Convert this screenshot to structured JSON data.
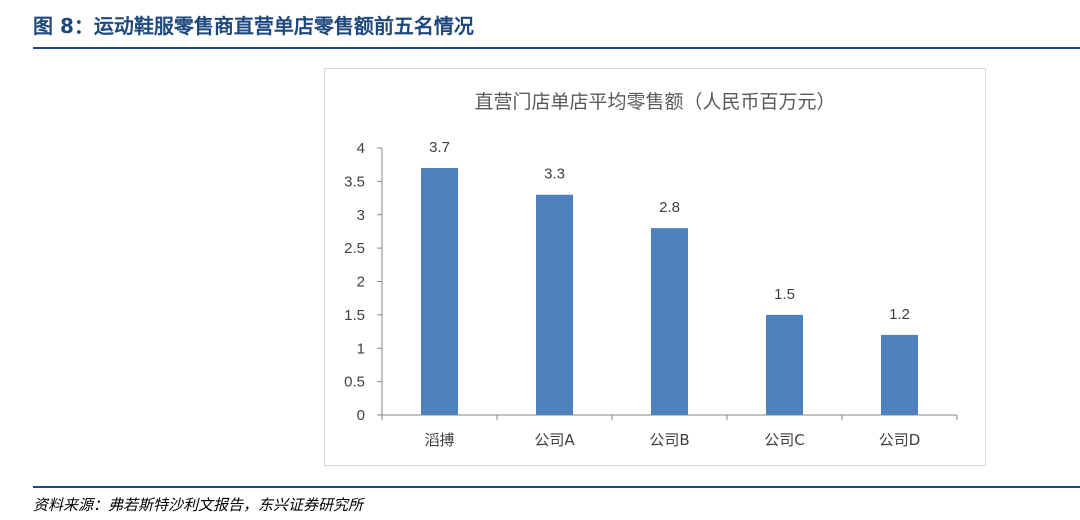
{
  "figure_title": "图 8：运动鞋服零售商直营单店零售额前五名情况",
  "source_note": "资料来源：弗若斯特沙利文报告，东兴证券研究所",
  "colors": {
    "bar": "#4f81bd",
    "title": "#1f497d",
    "axis": "#868686"
  },
  "chart_data": {
    "type": "bar",
    "title": "直营门店单店平均零售额（人民币百万元）",
    "categories": [
      "滔搏",
      "公司A",
      "公司B",
      "公司C",
      "公司D"
    ],
    "values": [
      3.7,
      3.3,
      2.8,
      1.5,
      1.2
    ],
    "ylim": [
      0,
      4
    ],
    "yticks": [
      "0",
      "0.5",
      "1",
      "1.5",
      "2",
      "2.5",
      "3",
      "3.5",
      "4"
    ],
    "xlabel": "",
    "ylabel": "",
    "grid": false,
    "legend": "none"
  }
}
